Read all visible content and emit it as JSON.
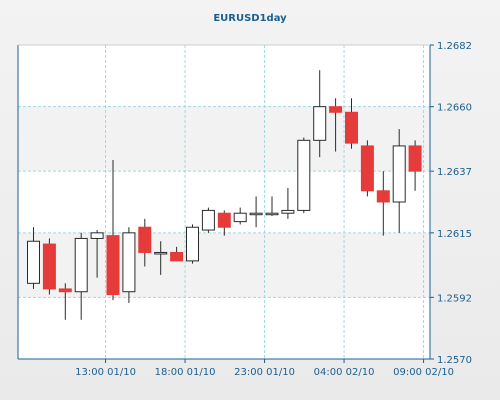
{
  "chart_data": {
    "type": "candlestick",
    "title": "EURUSD1day",
    "xlabel": "",
    "ylabel": "",
    "ylim": [
      1.257,
      1.2682
    ],
    "y_ticks": [
      "1.2682",
      "1.2660",
      "1.2637",
      "1.2615",
      "1.2592",
      "1.2570"
    ],
    "x_ticks": [
      "13:00 01/10",
      "18:00 01/10",
      "23:00 01/10",
      "04:00 02/10",
      "09:00 02/10"
    ],
    "grid": true,
    "colors": {
      "up_fill": "#ffffff",
      "down_fill": "#e53b3b",
      "outline": "#2b2b2b",
      "grid": "#9fd9e0",
      "axis": "#1b5f8f",
      "plot_band_a": "#ffffff",
      "plot_band_b": "#f2f2f2"
    },
    "candles": [
      {
        "open": 1.2597,
        "high": 1.2617,
        "low": 1.2595,
        "close": 1.2612
      },
      {
        "open": 1.2611,
        "high": 1.2613,
        "low": 1.2593,
        "close": 1.2595
      },
      {
        "open": 1.2595,
        "high": 1.2597,
        "low": 1.2584,
        "close": 1.2594
      },
      {
        "open": 1.2594,
        "high": 1.2615,
        "low": 1.2584,
        "close": 1.2613
      },
      {
        "open": 1.2613,
        "high": 1.2616,
        "low": 1.2599,
        "close": 1.2615
      },
      {
        "open": 1.2614,
        "high": 1.2641,
        "low": 1.2591,
        "close": 1.2593
      },
      {
        "open": 1.2594,
        "high": 1.2617,
        "low": 1.259,
        "close": 1.2615
      },
      {
        "open": 1.2617,
        "high": 1.262,
        "low": 1.2603,
        "close": 1.2608
      },
      {
        "open": 1.2608,
        "high": 1.2612,
        "low": 1.26,
        "close": 1.2608
      },
      {
        "open": 1.2608,
        "high": 1.261,
        "low": 1.2605,
        "close": 1.2605
      },
      {
        "open": 1.2605,
        "high": 1.2618,
        "low": 1.2604,
        "close": 1.2617
      },
      {
        "open": 1.2616,
        "high": 1.2624,
        "low": 1.2615,
        "close": 1.2623
      },
      {
        "open": 1.2622,
        "high": 1.2623,
        "low": 1.2614,
        "close": 1.2617
      },
      {
        "open": 1.2619,
        "high": 1.2624,
        "low": 1.2618,
        "close": 1.2622
      },
      {
        "open": 1.2622,
        "high": 1.2628,
        "low": 1.2617,
        "close": 1.2622
      },
      {
        "open": 1.2622,
        "high": 1.2628,
        "low": 1.2621,
        "close": 1.2622
      },
      {
        "open": 1.2622,
        "high": 1.2631,
        "low": 1.262,
        "close": 1.2623
      },
      {
        "open": 1.2623,
        "high": 1.2649,
        "low": 1.2622,
        "close": 1.2648
      },
      {
        "open": 1.2648,
        "high": 1.2673,
        "low": 1.2642,
        "close": 1.266
      },
      {
        "open": 1.266,
        "high": 1.2663,
        "low": 1.2644,
        "close": 1.2658
      },
      {
        "open": 1.2658,
        "high": 1.2663,
        "low": 1.2645,
        "close": 1.2647
      },
      {
        "open": 1.2646,
        "high": 1.2648,
        "low": 1.2628,
        "close": 1.263
      },
      {
        "open": 1.263,
        "high": 1.2637,
        "low": 1.2614,
        "close": 1.2626
      },
      {
        "open": 1.2626,
        "high": 1.2652,
        "low": 1.2615,
        "close": 1.2646
      },
      {
        "open": 1.2646,
        "high": 1.2648,
        "low": 1.263,
        "close": 1.2637
      }
    ]
  }
}
